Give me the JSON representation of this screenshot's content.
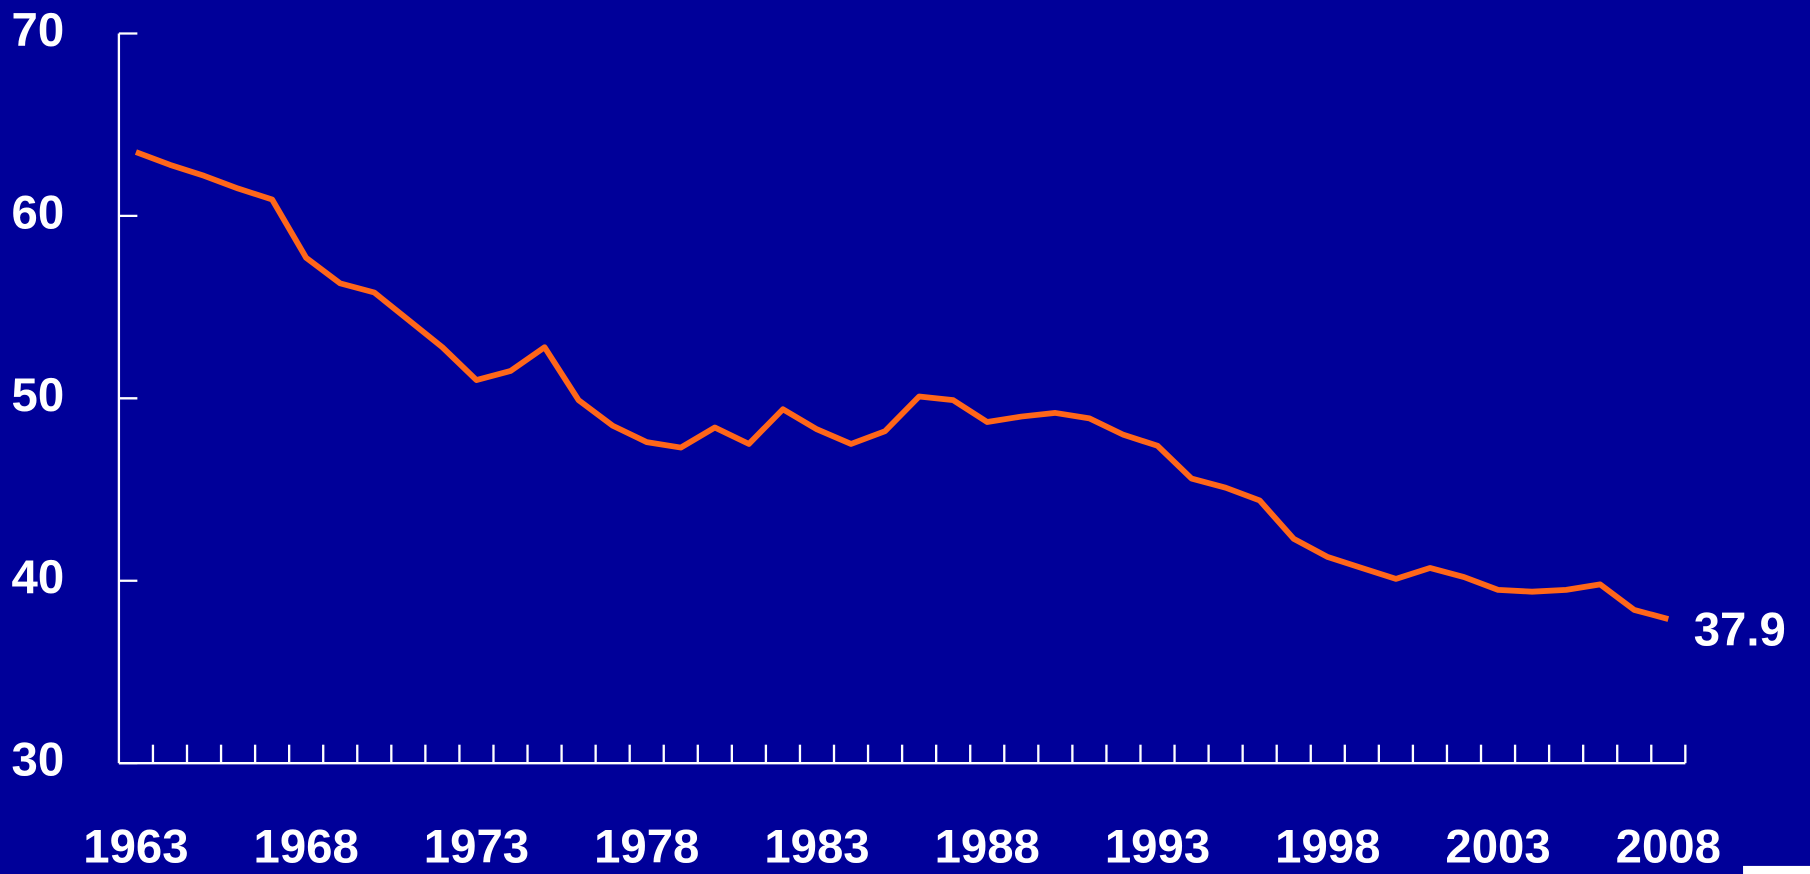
{
  "chart_data": {
    "type": "line",
    "x": [
      1963,
      1964,
      1965,
      1966,
      1967,
      1968,
      1969,
      1970,
      1971,
      1972,
      1973,
      1974,
      1975,
      1976,
      1977,
      1978,
      1979,
      1980,
      1981,
      1982,
      1983,
      1984,
      1985,
      1986,
      1987,
      1988,
      1989,
      1990,
      1991,
      1992,
      1993,
      1994,
      1995,
      1996,
      1997,
      1998,
      1999,
      2000,
      2001,
      2002,
      2003,
      2004,
      2005,
      2006,
      2007,
      2008
    ],
    "series": [
      {
        "color": "#ff6619",
        "values": [
          63.5,
          62.8,
          62.2,
          61.5,
          60.9,
          57.7,
          56.3,
          55.8,
          54.3,
          52.8,
          51.0,
          51.5,
          52.8,
          49.9,
          48.5,
          47.6,
          47.3,
          48.4,
          47.5,
          49.4,
          48.3,
          47.5,
          48.2,
          50.1,
          49.9,
          48.7,
          49.0,
          49.2,
          48.9,
          48.0,
          47.4,
          45.6,
          45.1,
          44.4,
          42.3,
          41.3,
          40.7,
          40.1,
          40.7,
          40.2,
          39.5,
          39.4,
          39.5,
          39.8,
          38.4,
          37.9
        ]
      }
    ],
    "xlim": [
      1962.5,
      2008.5
    ],
    "xticks": [
      1963,
      1968,
      1973,
      1978,
      1983,
      1988,
      1993,
      1998,
      2003,
      2008
    ],
    "ylim": [
      30,
      70
    ],
    "yticks": [
      30,
      40,
      50,
      60,
      70
    ],
    "grid": false
  }
}
